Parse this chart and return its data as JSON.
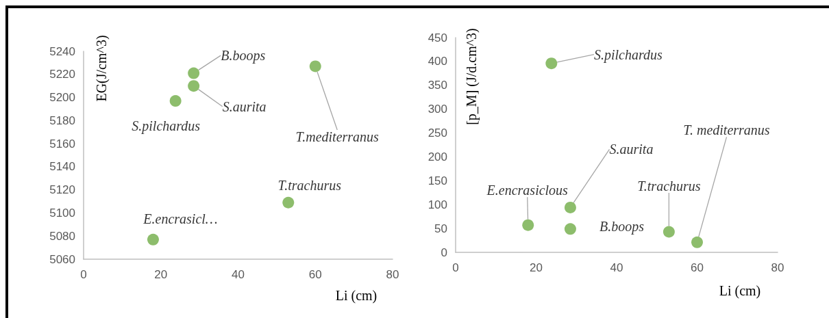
{
  "chart_data": [
    {
      "type": "scatter",
      "xlabel": "Li (cm)",
      "ylabel": "EG(J/cm^3)",
      "color": "#70ad47",
      "marker": "circle",
      "x": [
        18,
        23.8,
        28.5,
        28.5,
        53,
        60
      ],
      "values": [
        5077,
        5197,
        5221,
        5210,
        5109,
        5227
      ],
      "xlim": [
        0,
        80
      ],
      "xticks": [
        0,
        20,
        40,
        60,
        80
      ],
      "ylim": [
        5060,
        5240
      ],
      "yticks": [
        5060,
        5080,
        5100,
        5120,
        5140,
        5160,
        5180,
        5200,
        5220,
        5240
      ],
      "annotations": [
        {
          "text": "E.encrasicl…",
          "x": 18,
          "y": 5077
        },
        {
          "text": "S.pilchardus",
          "x": 23.8,
          "y": 5197
        },
        {
          "text": "B.boops",
          "x": 28.5,
          "y": 5221
        },
        {
          "text": "S.aurita",
          "x": 28.5,
          "y": 5210
        },
        {
          "text": "T.trachurus",
          "x": 53,
          "y": 5109
        },
        {
          "text": "T.mediterranus",
          "x": 60,
          "y": 5227
        }
      ]
    },
    {
      "type": "scatter",
      "xlabel": "Li (cm)",
      "ylabel": "[p_M] (J/d.cm^3)",
      "color": "#70ad47",
      "marker": "circle",
      "x": [
        18,
        28.5,
        28.5,
        23.8,
        53,
        60
      ],
      "values": [
        57,
        94,
        49,
        396,
        43,
        21
      ],
      "xlim": [
        0,
        80
      ],
      "xticks": [
        0,
        20,
        40,
        60,
        80
      ],
      "ylim": [
        0,
        450
      ],
      "yticks": [
        0,
        50,
        100,
        150,
        200,
        250,
        300,
        350,
        400,
        450
      ],
      "annotations": [
        {
          "text": "E.encrasiclous",
          "x": 18,
          "y": 57
        },
        {
          "text": "S.aurita",
          "x": 28.5,
          "y": 94
        },
        {
          "text": "B.boops",
          "x": 28.5,
          "y": 49
        },
        {
          "text": "S.pilchardus",
          "x": 23.8,
          "y": 396
        },
        {
          "text": "T.trachurus",
          "x": 53,
          "y": 43
        },
        {
          "text": "T. mediterranus",
          "x": 60,
          "y": 21
        }
      ]
    }
  ]
}
